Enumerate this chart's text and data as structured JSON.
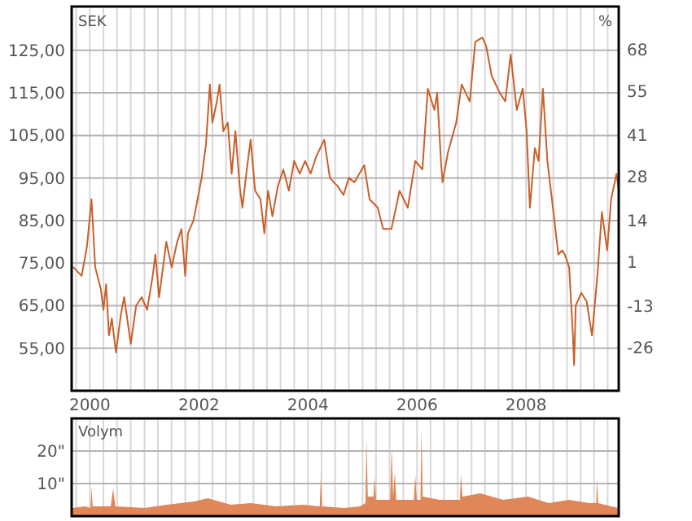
{
  "chart_data": [
    {
      "type": "line",
      "ylabel": "SEK",
      "y2label": "%",
      "grid": true,
      "xlim": [
        "1999-09-01",
        "2009-09-13"
      ],
      "xticks": [
        {
          "value": "1999-10",
          "label": null
        },
        {
          "value": "2000-01",
          "label": "2000"
        },
        {
          "value": "2000-04",
          "label": null
        },
        {
          "value": "2000-07",
          "label": null
        },
        {
          "value": "2000-10",
          "label": null
        },
        {
          "value": "2001-01",
          "label": null
        },
        {
          "value": "2001-04",
          "label": null
        },
        {
          "value": "2001-07",
          "label": null
        },
        {
          "value": "2001-10",
          "label": null
        },
        {
          "value": "2002-01",
          "label": "2002"
        },
        {
          "value": "2002-04",
          "label": null
        },
        {
          "value": "2002-07",
          "label": null
        },
        {
          "value": "2002-10",
          "label": null
        },
        {
          "value": "2003-01",
          "label": null
        },
        {
          "value": "2003-04",
          "label": null
        },
        {
          "value": "2003-07",
          "label": null
        },
        {
          "value": "2003-10",
          "label": null
        },
        {
          "value": "2004-01",
          "label": "2004"
        },
        {
          "value": "2004-04",
          "label": null
        },
        {
          "value": "2004-07",
          "label": null
        },
        {
          "value": "2004-10",
          "label": null
        },
        {
          "value": "2005-01",
          "label": null
        },
        {
          "value": "2005-04",
          "label": null
        },
        {
          "value": "2005-07",
          "label": null
        },
        {
          "value": "2005-10",
          "label": null
        },
        {
          "value": "2006-01",
          "label": "2006"
        },
        {
          "value": "2006-04",
          "label": null
        },
        {
          "value": "2006-07",
          "label": null
        },
        {
          "value": "2006-10",
          "label": null
        },
        {
          "value": "2007-01",
          "label": null
        },
        {
          "value": "2007-04",
          "label": null
        },
        {
          "value": "2007-07",
          "label": null
        },
        {
          "value": "2007-10",
          "label": null
        },
        {
          "value": "2008-01",
          "label": "2008"
        },
        {
          "value": "2008-04",
          "label": null
        },
        {
          "value": "2008-07",
          "label": null
        },
        {
          "value": "2008-10",
          "label": null
        },
        {
          "value": "2009-01",
          "label": null
        },
        {
          "value": "2009-04",
          "label": null
        },
        {
          "value": "2009-07",
          "label": null
        }
      ],
      "ylim": [
        45,
        135.3
      ],
      "yticks": [
        {
          "value": 55,
          "label": "55,00"
        },
        {
          "value": 65,
          "label": "65,00"
        },
        {
          "value": 75,
          "label": "75,00"
        },
        {
          "value": 85,
          "label": "85,00"
        },
        {
          "value": 95,
          "label": "95,00"
        },
        {
          "value": 105,
          "label": "105,00"
        },
        {
          "value": 115,
          "label": "115,00"
        },
        {
          "value": 125,
          "label": "125,00"
        }
      ],
      "y2lim": [
        -39.6,
        81.6
      ],
      "y2ticks": [
        -26,
        -13,
        1,
        14,
        28,
        41,
        55,
        68
      ],
      "series": [
        {
          "color": "#c8602a",
          "x": [
            "1999-09-13",
            "1999-11-07",
            "1999-12-13",
            "2000-01-12",
            "2000-02-06",
            "2000-03-14",
            "2000-04-01",
            "2000-04-19",
            "2000-05-08",
            "2000-05-27",
            "2000-06-24",
            "2000-07-27",
            "2000-08-18",
            "2000-10-01",
            "2000-11-06",
            "2000-12-13",
            "2001-01-19",
            "2001-02-25",
            "2001-03-15",
            "2001-04-09",
            "2001-05-27",
            "2001-07-02",
            "2001-08-08",
            "2001-09-06",
            "2001-10-01",
            "2001-10-19",
            "2001-11-25",
            "2002-01-19",
            "2002-02-17",
            "2002-03-15",
            "2002-04-01",
            "2002-05-01",
            "2002-05-19",
            "2002-06-13",
            "2002-07-13",
            "2002-08-08",
            "2002-09-02",
            "2002-10-01",
            "2002-10-19",
            "2002-11-14",
            "2002-12-13",
            "2003-01-12",
            "2003-02-17",
            "2003-03-15",
            "2003-04-09",
            "2003-05-08",
            "2003-06-13",
            "2003-07-20",
            "2003-08-26",
            "2003-10-01",
            "2003-11-07",
            "2003-12-13",
            "2004-01-19",
            "2004-02-25",
            "2004-04-19",
            "2004-05-27",
            "2004-07-20",
            "2004-08-26",
            "2004-10-01",
            "2004-11-07",
            "2005-01-12",
            "2005-02-17",
            "2005-04-13",
            "2005-05-19",
            "2005-07-13",
            "2005-09-06",
            "2005-10-31",
            "2005-12-20",
            "2006-02-06",
            "2006-03-14",
            "2006-04-27",
            "2006-05-16",
            "2006-06-10",
            "2006-06-21",
            "2006-07-27",
            "2006-09-20",
            "2006-10-27",
            "2006-12-20",
            "2007-01-26",
            "2007-03-14",
            "2007-04-09",
            "2007-05-16",
            "2007-07-09",
            "2007-08-15",
            "2007-09-20",
            "2007-10-31",
            "2007-12-10",
            "2008-01-05",
            "2008-01-27",
            "2008-02-29",
            "2008-03-25",
            "2008-04-23",
            "2008-05-23",
            "2008-07-06",
            "2008-08-04",
            "2008-08-30",
            "2008-09-17",
            "2008-10-16",
            "2008-11-10",
            "2008-11-18",
            "2008-11-29",
            "2009-01-05",
            "2009-02-10",
            "2009-03-18",
            "2009-04-23",
            "2009-05-23",
            "2009-06-28",
            "2009-07-24",
            "2009-08-29",
            "2009-09-10"
          ],
          "values": [
            74,
            72,
            79,
            90,
            74,
            69,
            64,
            70,
            58,
            62,
            54,
            63,
            67,
            56,
            65,
            67,
            64,
            72,
            77,
            67,
            80,
            74,
            80,
            83,
            72,
            82,
            85,
            95,
            103,
            117,
            108,
            113,
            117,
            106,
            108,
            96,
            106,
            93,
            88,
            96,
            104,
            92,
            90,
            82,
            92,
            86,
            93,
            97,
            92,
            99,
            96,
            99,
            96,
            100,
            104,
            95,
            93,
            91,
            95,
            94,
            98,
            90,
            88,
            83,
            83,
            92,
            88,
            99,
            97,
            116,
            111,
            115,
            99,
            94,
            101,
            108,
            117,
            113,
            127,
            128,
            126,
            119,
            115,
            113,
            124,
            111,
            116,
            106,
            88,
            102,
            99,
            116,
            99,
            86,
            77,
            78,
            77,
            74,
            58,
            51,
            65,
            68,
            66,
            58,
            72,
            87,
            78,
            90,
            96,
            93
          ]
        }
      ]
    },
    {
      "type": "area",
      "title": "Volym",
      "grid": true,
      "tick_labels": "y",
      "xlim": [
        "1999-09-01",
        "2009-09-13"
      ],
      "xticks": [
        {
          "value": "1999-10",
          "label": null
        },
        {
          "value": "2000-01",
          "label": null
        },
        {
          "value": "2000-04",
          "label": null
        },
        {
          "value": "2000-07",
          "label": null
        },
        {
          "value": "2000-10",
          "label": null
        },
        {
          "value": "2001-01",
          "label": null
        },
        {
          "value": "2001-04",
          "label": null
        },
        {
          "value": "2001-07",
          "label": null
        },
        {
          "value": "2001-10",
          "label": null
        },
        {
          "value": "2002-01",
          "label": null
        },
        {
          "value": "2002-04",
          "label": null
        },
        {
          "value": "2002-07",
          "label": null
        },
        {
          "value": "2002-10",
          "label": null
        },
        {
          "value": "2003-01",
          "label": null
        },
        {
          "value": "2003-04",
          "label": null
        },
        {
          "value": "2003-07",
          "label": null
        },
        {
          "value": "2003-10",
          "label": null
        },
        {
          "value": "2004-01",
          "label": null
        },
        {
          "value": "2004-04",
          "label": null
        },
        {
          "value": "2004-07",
          "label": null
        },
        {
          "value": "2004-10",
          "label": null
        },
        {
          "value": "2005-01",
          "label": null
        },
        {
          "value": "2005-04",
          "label": null
        },
        {
          "value": "2005-07",
          "label": null
        },
        {
          "value": "2005-10",
          "label": null
        },
        {
          "value": "2006-01",
          "label": null
        },
        {
          "value": "2006-04",
          "label": null
        },
        {
          "value": "2006-07",
          "label": null
        },
        {
          "value": "2006-10",
          "label": null
        },
        {
          "value": "2007-01",
          "label": null
        },
        {
          "value": "2007-04",
          "label": null
        },
        {
          "value": "2007-07",
          "label": null
        },
        {
          "value": "2007-10",
          "label": null
        },
        {
          "value": "2008-01",
          "label": null
        },
        {
          "value": "2008-04",
          "label": null
        },
        {
          "value": "2008-07",
          "label": null
        },
        {
          "value": "2008-10",
          "label": null
        },
        {
          "value": "2009-01",
          "label": null
        },
        {
          "value": "2009-04",
          "label": null
        },
        {
          "value": "2009-07",
          "label": null
        }
      ],
      "ylim": [
        0,
        30
      ],
      "yticks": [
        {
          "value": 10,
          "label": "10\""
        },
        {
          "value": 20,
          "label": "20\""
        }
      ],
      "series": [
        {
          "color": "#e0875a",
          "x": [
            "1999-09-05",
            "1999-12-01",
            "2000-01-05",
            "2000-01-12",
            "2000-01-20",
            "2000-05-20",
            "2000-06-05",
            "2000-06-20",
            "2001-01-01",
            "2001-06-01",
            "2001-12-01",
            "2002-03-01",
            "2002-08-01",
            "2002-12-15",
            "2003-06-01",
            "2003-12-01",
            "2004-03-20",
            "2004-03-27",
            "2004-04-05",
            "2004-09-01",
            "2004-12-15",
            "2005-01-20",
            "2005-01-27",
            "2005-02-05",
            "2005-03-15",
            "2005-03-22",
            "2005-04-01",
            "2005-07-05",
            "2005-07-15",
            "2005-07-25",
            "2005-08-05",
            "2005-08-15",
            "2005-12-10",
            "2005-12-20",
            "2005-12-30",
            "2006-01-24",
            "2006-01-30",
            "2006-02-08",
            "2006-06-01",
            "2006-10-15",
            "2006-10-22",
            "2006-11-01",
            "2007-03-01",
            "2007-08-01",
            "2008-01-15",
            "2008-06-01",
            "2008-10-15",
            "2009-03-01",
            "2009-04-15",
            "2009-04-20",
            "2009-04-28",
            "2009-09-10"
          ],
          "values": [
            2.5,
            3,
            2.5,
            9,
            3,
            3,
            8.5,
            3,
            2.5,
            3.5,
            4.5,
            5.5,
            3.5,
            4,
            3,
            3.5,
            3,
            12,
            3,
            2.5,
            3,
            4,
            24,
            6,
            6,
            12,
            5,
            5,
            21,
            6,
            13.5,
            5,
            5,
            12.5,
            5,
            5,
            27,
            6,
            5,
            5,
            13,
            6,
            7,
            5,
            6,
            4,
            5,
            4,
            4,
            11.5,
            4,
            2.5
          ]
        }
      ]
    }
  ]
}
